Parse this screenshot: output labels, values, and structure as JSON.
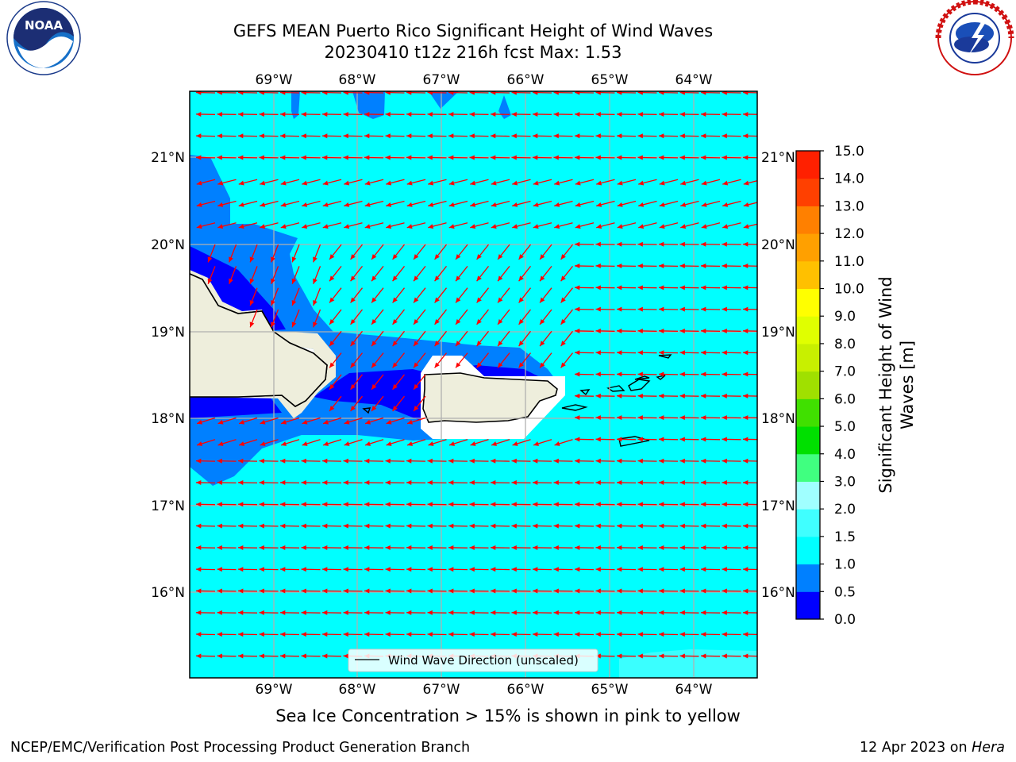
{
  "header": {
    "title_line1": "GEFS MEAN Puerto Rico Significant Height of Wind Waves",
    "title_line2": "20230410 t12z 216h fcst   Max: 1.53"
  },
  "logos": {
    "left": "NOAA",
    "right": "NATIONAL WEATHER SERVICE"
  },
  "map": {
    "lon_ticks": [
      "69°W",
      "68°W",
      "67°W",
      "66°W",
      "65°W",
      "64°W"
    ],
    "lat_ticks": [
      "21°N",
      "20°N",
      "19°N",
      "18°N",
      "17°N",
      "16°N"
    ],
    "legend_label": "Wind Wave Direction (unscaled)",
    "colors": {
      "ocean": "#00ffff",
      "band_1": "#0080ff",
      "band_0": "#0000ff",
      "land": "#eeeedc",
      "arrow": "#ff0000",
      "grid": "#b0b0b0"
    }
  },
  "colorbar": {
    "label": "Significant Height of Wind Waves [m]",
    "label_line1": "Significant Height of Wind",
    "label_line2": "Waves [m]",
    "ticks": [
      "0.0",
      "0.5",
      "1.0",
      "1.5",
      "2.0",
      "3.0",
      "4.0",
      "5.0",
      "6.0",
      "7.0",
      "8.0",
      "9.0",
      "10.0",
      "11.0",
      "12.0",
      "13.0",
      "14.0",
      "15.0"
    ],
    "colors": [
      "#0000ff",
      "#0080ff",
      "#00ffff",
      "#40ffff",
      "#a0ffff",
      "#40ff80",
      "#00e000",
      "#40e000",
      "#a0e000",
      "#c8f000",
      "#e0ff00",
      "#ffff00",
      "#ffc000",
      "#ffa000",
      "#ff8000",
      "#ff4000",
      "#ff2000"
    ]
  },
  "note": "Sea Ice Concentration > 15% is shown in pink to yellow",
  "footer": {
    "left": "NCEP/EMC/Verification Post Processing Product Generation Branch",
    "right_prefix": "12 Apr 2023 on ",
    "right_machine": "Hera"
  }
}
